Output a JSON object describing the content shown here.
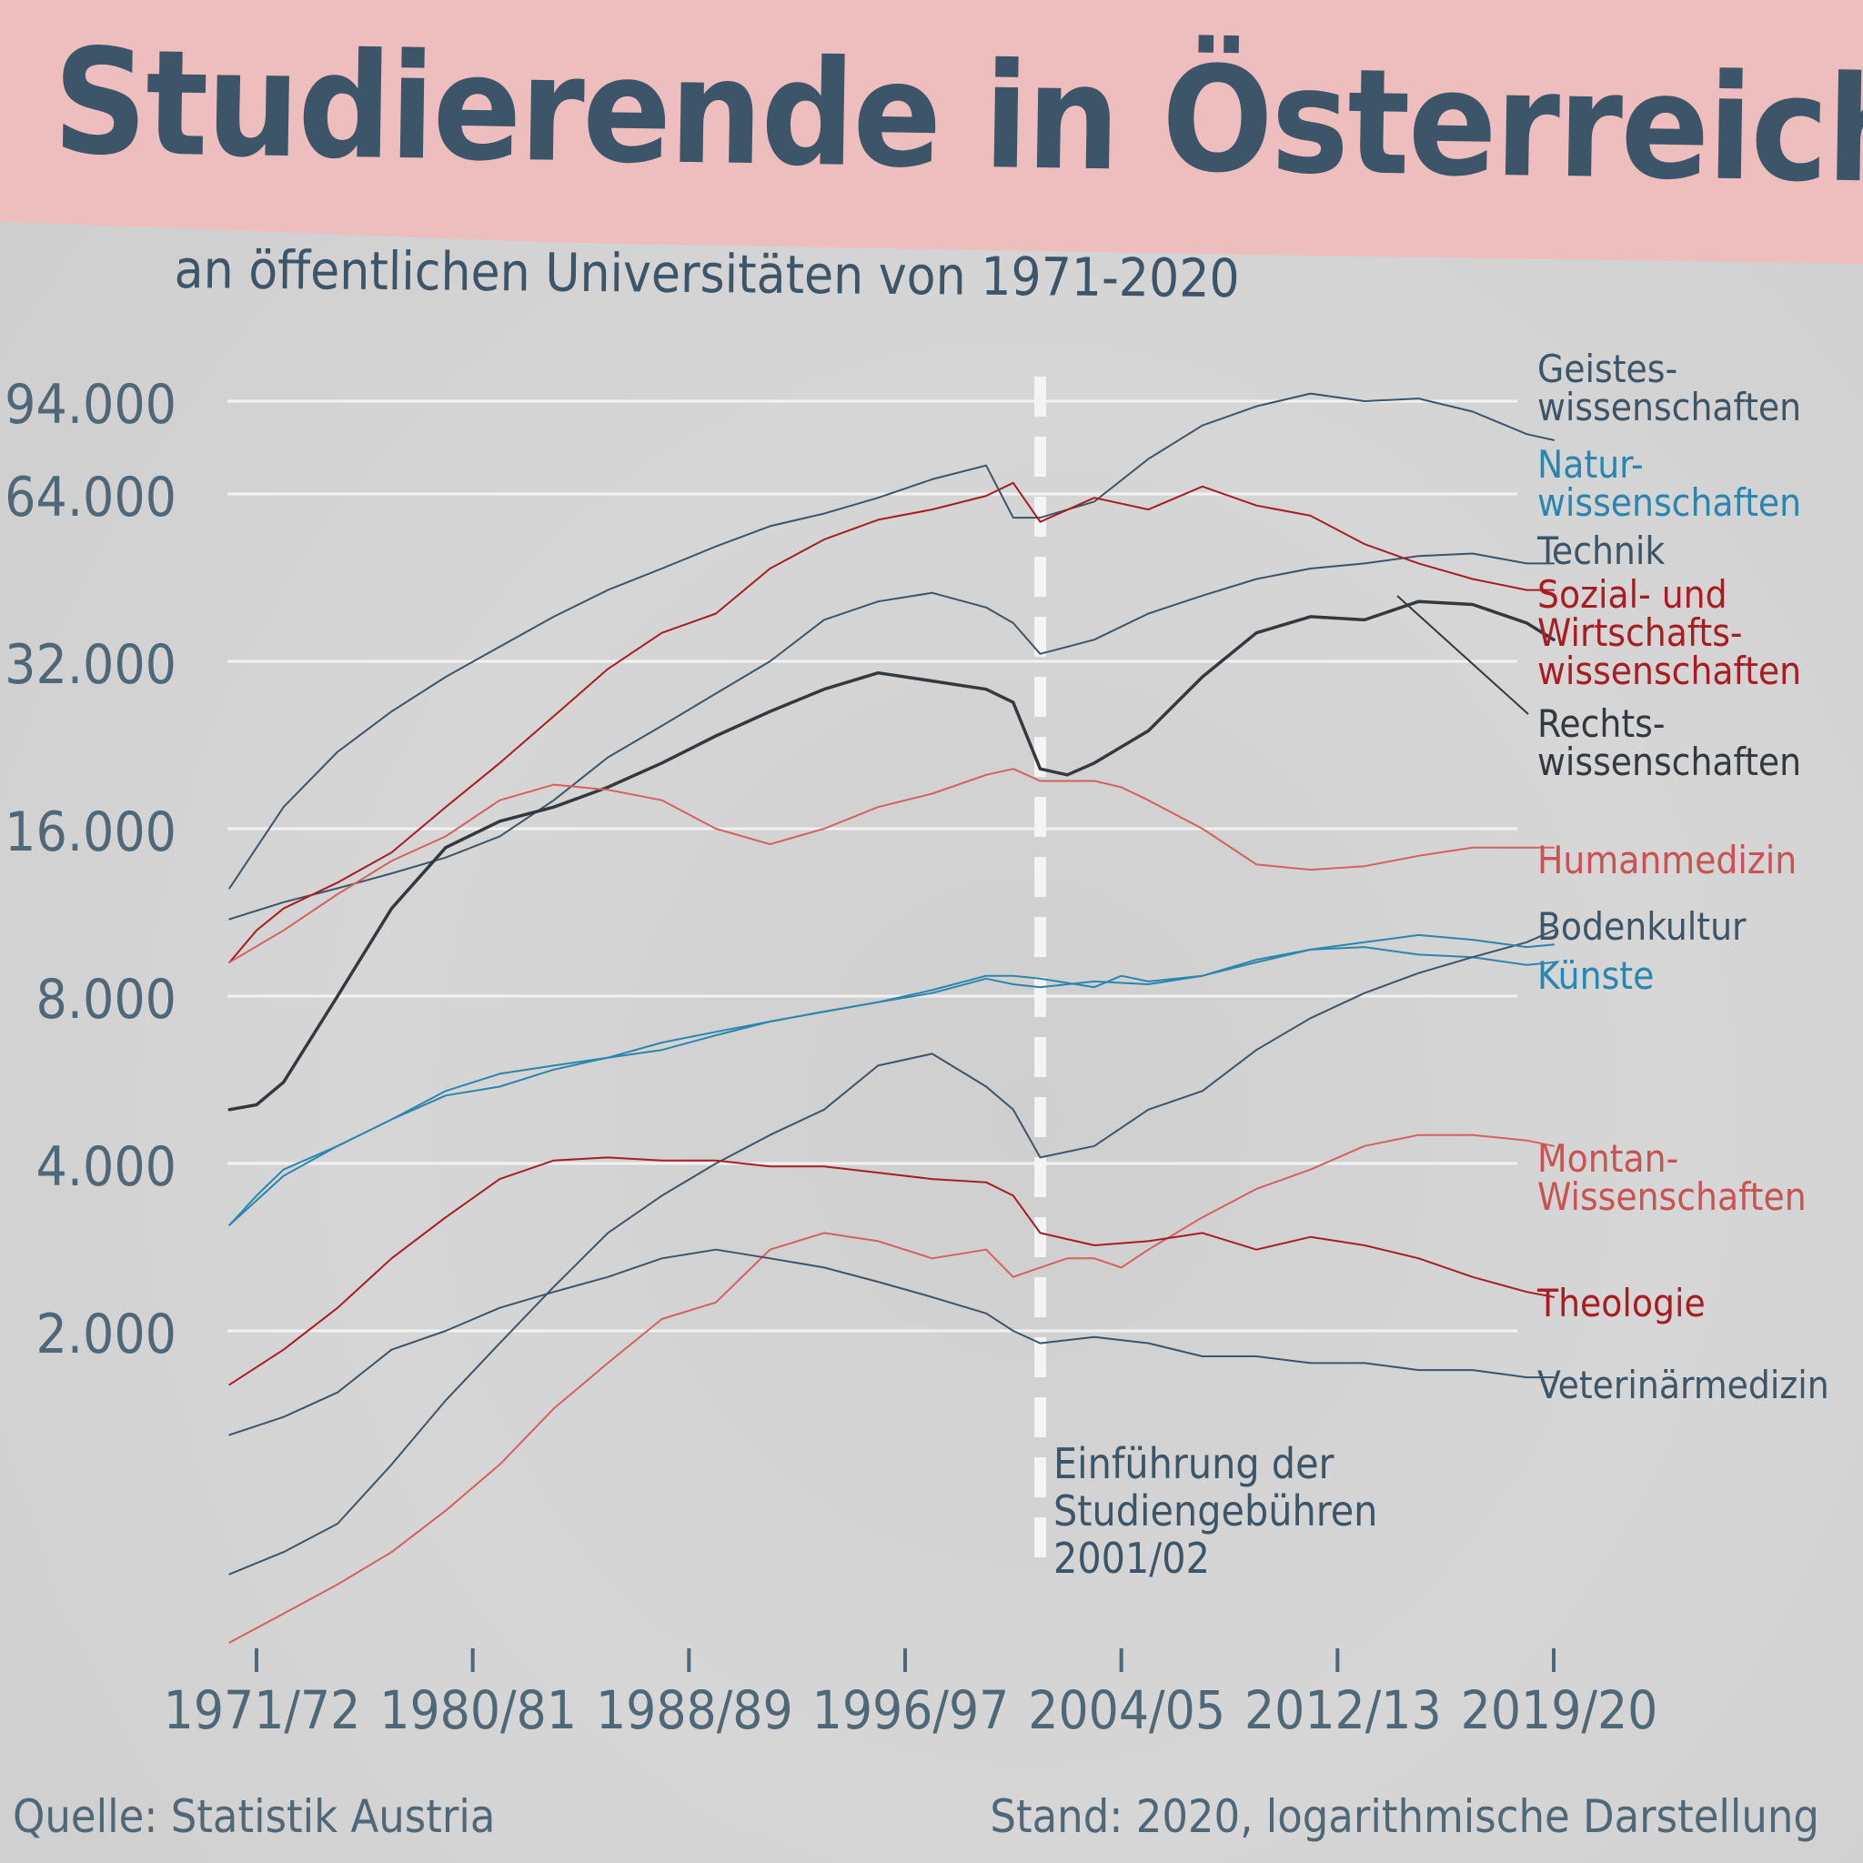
{
  "header": {
    "title": "Studierende in Österreich",
    "subtitle": "an öffentlichen Universitäten von 1971-2020"
  },
  "footer": {
    "source": "Quelle: Statistik Austria",
    "note": "Stand: 2020, logarithmische Darstellung"
  },
  "colors": {
    "background": "#d4d4d4",
    "banner": "#eebdbd",
    "title": "#3c5568",
    "gridline": "#f2f2f2",
    "axis_text": "#4f6878"
  },
  "chart_data": {
    "type": "line",
    "title": "Studierende in Österreich",
    "subtitle": "an öffentlichen Universitäten von 1971-2020",
    "xlabel": "",
    "ylabel": "",
    "yscale": "log2",
    "ylim": [
      600,
      120000
    ],
    "xlim": [
      1971,
      2019
    ],
    "y_ticks": [
      {
        "value": 2000,
        "label": "2.000"
      },
      {
        "value": 4000,
        "label": "4.000"
      },
      {
        "value": 8000,
        "label": "8.000"
      },
      {
        "value": 16000,
        "label": "16.000"
      },
      {
        "value": 32000,
        "label": "32.000"
      },
      {
        "value": 64000,
        "label": "64.000"
      },
      {
        "value": 94000,
        "label": "94.000"
      }
    ],
    "x_ticks": [
      {
        "value": 1971,
        "label": "1971/72"
      },
      {
        "value": 1979,
        "label": "1980/81"
      },
      {
        "value": 1987,
        "label": "1988/89"
      },
      {
        "value": 1995,
        "label": "1996/97"
      },
      {
        "value": 2003,
        "label": "2004/05"
      },
      {
        "value": 2011,
        "label": "2012/13"
      },
      {
        "value": 2019,
        "label": "2019/20"
      }
    ],
    "grid": true,
    "annotation": {
      "x": 2000,
      "lines": [
        "Einführung der",
        "Studiengebühren",
        "2001/02"
      ]
    },
    "series": [
      {
        "name": "Geisteswissenschaften",
        "label": [
          "Geistes-",
          "wissenschaften"
        ],
        "color": "#3c5568",
        "width": 2,
        "x": [
          1970,
          1972,
          1974,
          1976,
          1978,
          1980,
          1982,
          1984,
          1986,
          1988,
          1990,
          1992,
          1994,
          1996,
          1998,
          1999,
          2000,
          2002,
          2004,
          2006,
          2008,
          2010,
          2012,
          2014,
          2016,
          2018,
          2019
        ],
        "values": [
          12500,
          17500,
          22000,
          26000,
          30000,
          34000,
          38500,
          43000,
          47000,
          51500,
          56000,
          59000,
          63000,
          68000,
          72000,
          58000,
          58000,
          62000,
          74000,
          85000,
          92000,
          97000,
          94000,
          95000,
          90000,
          82000,
          80000
        ]
      },
      {
        "name": "Naturwissenschaften",
        "label": [
          "Natur-",
          "wissenschaften"
        ],
        "color": "#2a86ae",
        "width": 2,
        "x": [
          1970,
          1971,
          1972,
          1974,
          1976,
          1978,
          1980,
          1982,
          1984,
          1986,
          1988,
          1990,
          1992,
          1994,
          1996,
          1998,
          1999,
          2000,
          2002,
          2003,
          2004,
          2006,
          2008,
          2010,
          2012,
          2014,
          2016,
          2018,
          2019
        ],
        "values": [
          3100,
          3500,
          3900,
          4300,
          4800,
          5300,
          5500,
          5900,
          6200,
          6600,
          6900,
          7200,
          7500,
          7800,
          8200,
          8700,
          8700,
          8600,
          8300,
          8700,
          8500,
          8700,
          9200,
          9700,
          9800,
          9500,
          9400,
          9100,
          9200
        ]
      },
      {
        "name": "Technik",
        "label": [
          "Technik"
        ],
        "color": "#3c5568",
        "width": 2,
        "x": [
          1970,
          1972,
          1974,
          1976,
          1978,
          1980,
          1982,
          1984,
          1986,
          1988,
          1990,
          1992,
          1994,
          1996,
          1998,
          1999,
          2000,
          2002,
          2004,
          2006,
          2008,
          2010,
          2012,
          2014,
          2016,
          2018,
          2019
        ],
        "values": [
          11000,
          11800,
          12500,
          13300,
          14200,
          15500,
          18000,
          21500,
          24500,
          28000,
          32000,
          38000,
          41000,
          42500,
          40000,
          37500,
          33000,
          35000,
          39000,
          42000,
          45000,
          47000,
          48000,
          49500,
          50000,
          48000,
          48000
        ]
      },
      {
        "name": "Sozial- und Wirtschaftswissenschaften",
        "label": [
          "Sozial- und",
          "Wirtschafts-",
          "wissenschaften"
        ],
        "color": "#a81d22",
        "width": 2,
        "x": [
          1970,
          1971,
          1972,
          1974,
          1976,
          1978,
          1980,
          1982,
          1984,
          1986,
          1988,
          1990,
          1992,
          1994,
          1996,
          1998,
          1999,
          2000,
          2002,
          2004,
          2006,
          2008,
          2010,
          2012,
          2014,
          2016,
          2018,
          2019
        ],
        "values": [
          9200,
          10500,
          11500,
          12800,
          14500,
          17500,
          21000,
          25500,
          31000,
          36000,
          39000,
          47000,
          53000,
          57500,
          60000,
          63500,
          67000,
          57000,
          63000,
          60000,
          66000,
          61000,
          58500,
          52000,
          48000,
          45000,
          43000,
          43000
        ]
      },
      {
        "name": "Rechtswissenschaften",
        "label": [
          "Rechts-",
          "wissenschaften"
        ],
        "color": "#333a3f",
        "width": 3.5,
        "x": [
          1970,
          1971,
          1972,
          1974,
          1976,
          1978,
          1980,
          1982,
          1984,
          1986,
          1988,
          1990,
          1992,
          1994,
          1996,
          1998,
          1999,
          2000,
          2001,
          2002,
          2004,
          2006,
          2008,
          2010,
          2012,
          2014,
          2016,
          2018,
          2019
        ],
        "values": [
          5000,
          5100,
          5600,
          8000,
          11500,
          14800,
          16500,
          17500,
          19000,
          21000,
          23500,
          26000,
          28500,
          30500,
          29500,
          28500,
          27000,
          20500,
          20000,
          21000,
          24000,
          30000,
          36000,
          38500,
          38000,
          41000,
          40500,
          37500,
          35000
        ]
      },
      {
        "name": "Humanmedizin",
        "label": [
          "Humanmedizin"
        ],
        "color": "#d65f5f",
        "width": 2,
        "x": [
          1970,
          1972,
          1974,
          1976,
          1978,
          1980,
          1982,
          1984,
          1986,
          1988,
          1990,
          1992,
          1994,
          1996,
          1998,
          1999,
          2000,
          2002,
          2003,
          2004,
          2006,
          2008,
          2010,
          2012,
          2014,
          2016,
          2018,
          2019
        ],
        "values": [
          9200,
          10500,
          12200,
          14000,
          15500,
          18000,
          19200,
          18800,
          18000,
          16000,
          15000,
          16000,
          17500,
          18500,
          20000,
          20500,
          19500,
          19500,
          19000,
          18000,
          16000,
          13800,
          13500,
          13700,
          14300,
          14800,
          14800,
          14800
        ]
      },
      {
        "name": "Bodenkultur",
        "label": [
          "Bodenkultur"
        ],
        "color": "#3c5568",
        "width": 2,
        "x": [
          1970,
          1972,
          1974,
          1976,
          1978,
          1980,
          1982,
          1984,
          1986,
          1988,
          1990,
          1992,
          1994,
          1996,
          1998,
          1999,
          2000,
          2002,
          2004,
          2006,
          2008,
          2010,
          2012,
          2014,
          2016,
          2018,
          2019
        ],
        "values": [
          730,
          800,
          900,
          1150,
          1500,
          1900,
          2400,
          3000,
          3500,
          4000,
          4500,
          5000,
          6000,
          6300,
          5500,
          5000,
          4100,
          4300,
          5000,
          5400,
          6400,
          7300,
          8100,
          8800,
          9400,
          10000,
          10500
        ]
      },
      {
        "name": "Künste",
        "label": [
          "Künste"
        ],
        "color": "#2a86ae",
        "width": 2,
        "x": [
          1970,
          1972,
          1974,
          1976,
          1978,
          1980,
          1982,
          1984,
          1986,
          1988,
          1990,
          1992,
          1994,
          1996,
          1998,
          1999,
          2000,
          2002,
          2004,
          2006,
          2008,
          2010,
          2012,
          2014,
          2016,
          2018,
          2019
        ],
        "values": [
          3100,
          3800,
          4300,
          4800,
          5400,
          5800,
          6000,
          6200,
          6400,
          6800,
          7200,
          7500,
          7800,
          8100,
          8600,
          8400,
          8300,
          8500,
          8400,
          8700,
          9300,
          9700,
          10000,
          10300,
          10100,
          9800,
          9900
        ]
      },
      {
        "name": "Montan-Wissenschaften",
        "label": [
          "Montan-",
          "Wissenschaften"
        ],
        "color": "#d65f5f",
        "width": 2,
        "x": [
          1970,
          1972,
          1974,
          1976,
          1978,
          1980,
          1982,
          1984,
          1986,
          1988,
          1990,
          1992,
          1994,
          1996,
          1998,
          1999,
          2000,
          2001,
          2002,
          2003,
          2004,
          2006,
          2008,
          2010,
          2012,
          2014,
          2016,
          2018,
          2019
        ],
        "values": [
          550,
          620,
          700,
          800,
          950,
          1150,
          1450,
          1750,
          2100,
          2250,
          2800,
          3000,
          2900,
          2700,
          2800,
          2500,
          2600,
          2700,
          2700,
          2600,
          2800,
          3200,
          3600,
          3900,
          4300,
          4500,
          4500,
          4400,
          4300
        ]
      },
      {
        "name": "Theologie",
        "label": [
          "Theologie"
        ],
        "color": "#a81d22",
        "width": 2,
        "x": [
          1970,
          1972,
          1974,
          1976,
          1978,
          1980,
          1982,
          1984,
          1986,
          1988,
          1990,
          1992,
          1994,
          1996,
          1998,
          1999,
          2000,
          2002,
          2004,
          2006,
          2008,
          2010,
          2012,
          2014,
          2016,
          2018,
          2019
        ],
        "values": [
          1600,
          1850,
          2200,
          2700,
          3200,
          3750,
          4050,
          4100,
          4050,
          4050,
          3950,
          3950,
          3850,
          3750,
          3700,
          3500,
          3000,
          2850,
          2900,
          3000,
          2800,
          2950,
          2850,
          2700,
          2500,
          2350,
          2300
        ]
      },
      {
        "name": "Veterinärmedizin",
        "label": [
          "Veterinärmedizin"
        ],
        "color": "#3c5568",
        "width": 2,
        "x": [
          1970,
          1972,
          1974,
          1976,
          1978,
          1980,
          1982,
          1984,
          1986,
          1988,
          1990,
          1992,
          1994,
          1996,
          1998,
          1999,
          2000,
          2002,
          2004,
          2006,
          2008,
          2010,
          2012,
          2014,
          2016,
          2018,
          2019
        ],
        "values": [
          1300,
          1400,
          1550,
          1850,
          2000,
          2200,
          2350,
          2500,
          2700,
          2800,
          2700,
          2600,
          2450,
          2300,
          2150,
          2000,
          1900,
          1950,
          1900,
          1800,
          1800,
          1750,
          1750,
          1700,
          1700,
          1650,
          1650
        ]
      }
    ]
  }
}
